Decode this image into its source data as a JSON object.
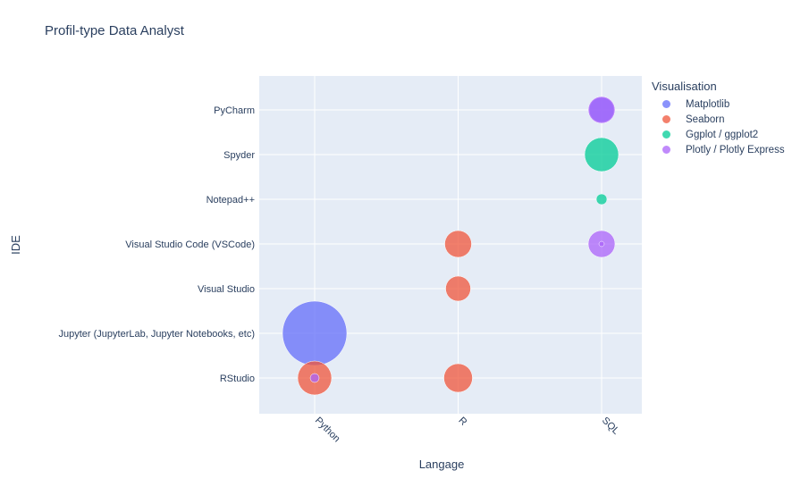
{
  "chart_data": {
    "type": "scatter",
    "title": "Profil-type Data Analyst",
    "xlabel": "Langage",
    "ylabel": "IDE",
    "x_categories": [
      "Python",
      "R",
      "SQL"
    ],
    "y_categories": [
      "RStudio",
      "Jupyter (JupyterLab, Jupyter Notebooks, etc)",
      "Visual Studio",
      "Visual Studio Code (VSCode)",
      "Notepad++",
      "Spyder",
      "PyCharm"
    ],
    "legend_title": "Visualisation",
    "legend_position": "right",
    "grid": true,
    "series": [
      {
        "name": "Matplotlib",
        "color": "#636efa",
        "points": [
          {
            "x": "Python",
            "y": "Jupyter (JupyterLab, Jupyter Notebooks, etc)",
            "size": 36
          },
          {
            "x": "SQL",
            "y": "PyCharm",
            "size": 14
          }
        ]
      },
      {
        "name": "Seaborn",
        "color": "#ef553b",
        "points": [
          {
            "x": "Python",
            "y": "RStudio",
            "size": 19
          },
          {
            "x": "R",
            "y": "RStudio",
            "size": 16
          },
          {
            "x": "R",
            "y": "Visual Studio",
            "size": 14
          },
          {
            "x": "R",
            "y": "Visual Studio Code (VSCode)",
            "size": 15
          }
        ]
      },
      {
        "name": "Ggplot / ggplot2",
        "color": "#00cc96",
        "points": [
          {
            "x": "SQL",
            "y": "Spyder",
            "size": 19
          },
          {
            "x": "SQL",
            "y": "Notepad++",
            "size": 6
          }
        ]
      },
      {
        "name": "Plotly / Plotly Express",
        "color": "#ab63fa",
        "points": [
          {
            "x": "SQL",
            "y": "PyCharm",
            "size": 15
          },
          {
            "x": "SQL",
            "y": "Visual Studio Code (VSCode)",
            "size": 15
          },
          {
            "x": "SQL",
            "y": "Visual Studio Code (VSCode)",
            "size": 3
          },
          {
            "x": "Python",
            "y": "RStudio",
            "size": 5
          }
        ]
      }
    ]
  }
}
